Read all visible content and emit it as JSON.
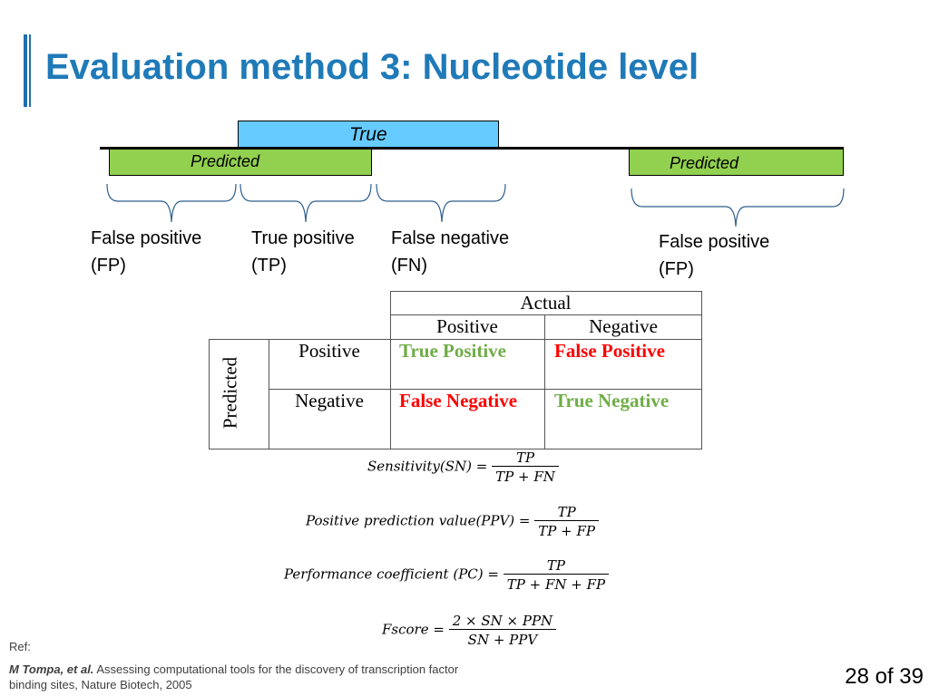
{
  "slide": {
    "title": "Evaluation method 3:  Nucleotide level",
    "page_number": "28 of 39"
  },
  "diagram": {
    "true_label": "True",
    "predicted_left_label": "Predicted",
    "predicted_right_label": "Predicted",
    "brackets": [
      {
        "line1": "False positive",
        "line2": "(FP)"
      },
      {
        "line1": "True positive",
        "line2": "(TP)"
      },
      {
        "line1": "False negative",
        "line2": "(FN)"
      },
      {
        "line1": "False positive",
        "line2": "(FP)"
      }
    ]
  },
  "confusion_matrix": {
    "actual_header": "Actual",
    "predicted_header": "Predicted",
    "col_headers": [
      "Positive",
      "Negative"
    ],
    "row_headers": [
      "Positive",
      "Negative"
    ],
    "cells": [
      [
        "True Positive",
        "False Positive"
      ],
      [
        "False Negative",
        "True Negative"
      ]
    ],
    "colors": {
      "true": "#70ad47",
      "false": "#ff0000"
    }
  },
  "formulas": [
    {
      "lhs": "Sensitivity(SN) =",
      "num": "TP",
      "den": "TP + FN"
    },
    {
      "lhs": "Positive prediction value(PPV) =",
      "num": "TP",
      "den": "TP + FP"
    },
    {
      "lhs": "Performance coefficient (PC) =",
      "num": "TP",
      "den": "TP + FN + FP"
    },
    {
      "lhs": "Fscore =",
      "num": "2 × SN × PPN",
      "den": "SN + PPV"
    }
  ],
  "reference": {
    "label": "Ref:",
    "authors": "M Tompa, et al.",
    "text": " Assessing computational tools for the discovery of transcription factor binding sites, Nature Biotech, 2005"
  }
}
